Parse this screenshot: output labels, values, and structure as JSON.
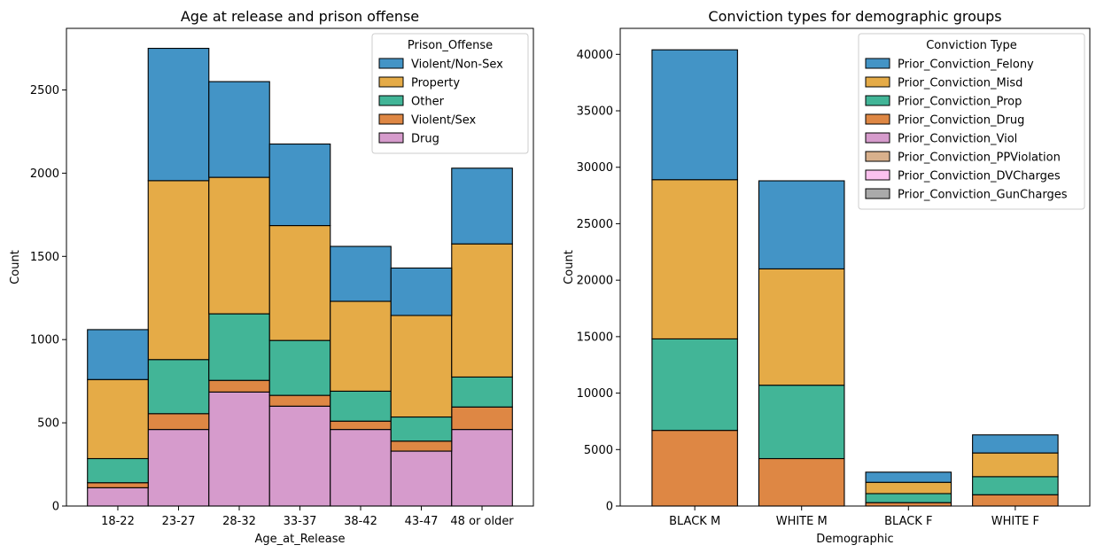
{
  "chart_data": [
    {
      "type": "bar",
      "stacked": true,
      "title": "Age at release and prison offense",
      "xlabel": "Age_at_Release",
      "ylabel": "Count",
      "categories": [
        "18-22",
        "23-27",
        "28-32",
        "33-37",
        "38-42",
        "43-47",
        "48 or older"
      ],
      "ylim": [
        0,
        2870
      ],
      "yticks": [
        0,
        500,
        1000,
        1500,
        2000,
        2500
      ],
      "grid": false,
      "legend": {
        "title": "Prison_Offense",
        "placement": "top-right"
      },
      "series": [
        {
          "name": "Drug",
          "color": "#d69bcc",
          "values": [
            110,
            460,
            685,
            600,
            460,
            330,
            460
          ]
        },
        {
          "name": "Violent/Sex",
          "color": "#de8744",
          "values": [
            30,
            95,
            70,
            65,
            50,
            60,
            135
          ]
        },
        {
          "name": "Other",
          "color": "#42b597",
          "values": [
            145,
            325,
            400,
            330,
            180,
            145,
            180
          ]
        },
        {
          "name": "Property",
          "color": "#e5ab47",
          "values": [
            475,
            1075,
            820,
            690,
            540,
            610,
            800
          ]
        },
        {
          "name": "Violent/Non-Sex",
          "color": "#4394c6",
          "values": [
            300,
            795,
            575,
            490,
            330,
            285,
            455
          ]
        }
      ],
      "legend_order": [
        "Violent/Non-Sex",
        "Property",
        "Other",
        "Violent/Sex",
        "Drug"
      ]
    },
    {
      "type": "bar",
      "stacked": true,
      "title": "Conviction types for demographic groups",
      "xlabel": "Demographic",
      "ylabel": "Count",
      "categories": [
        "BLACK M",
        "WHITE M",
        "BLACK F",
        "WHITE F"
      ],
      "ylim": [
        0,
        42300
      ],
      "yticks": [
        0,
        5000,
        10000,
        15000,
        20000,
        25000,
        30000,
        35000,
        40000
      ],
      "grid": false,
      "legend": {
        "title": "Conviction Type",
        "placement": "top-right"
      },
      "series": [
        {
          "name": "Prior_Conviction_Drug",
          "color": "#de8744",
          "values": [
            6700,
            4200,
            300,
            1000
          ]
        },
        {
          "name": "Prior_Conviction_Prop",
          "color": "#42b597",
          "values": [
            8100,
            6500,
            800,
            1600
          ]
        },
        {
          "name": "Prior_Conviction_Misd",
          "color": "#e5ab47",
          "values": [
            14100,
            10300,
            1000,
            2100
          ]
        },
        {
          "name": "Prior_Conviction_Felony",
          "color": "#4394c6",
          "values": [
            11500,
            7800,
            900,
            1600
          ]
        },
        {
          "name": "Prior_Conviction_Viol",
          "color": "#d69bcc",
          "values": [
            0,
            0,
            0,
            0
          ]
        },
        {
          "name": "Prior_Conviction_PPViolation",
          "color": "#d8b08c",
          "values": [
            0,
            0,
            0,
            0
          ]
        },
        {
          "name": "Prior_Conviction_DVCharges",
          "color": "#fbc1ee",
          "values": [
            0,
            0,
            0,
            0
          ]
        },
        {
          "name": "Prior_Conviction_GunCharges",
          "color": "#aaaaaa",
          "values": [
            0,
            0,
            0,
            0
          ]
        }
      ],
      "legend_order": [
        "Prior_Conviction_Felony",
        "Prior_Conviction_Misd",
        "Prior_Conviction_Prop",
        "Prior_Conviction_Drug",
        "Prior_Conviction_Viol",
        "Prior_Conviction_PPViolation",
        "Prior_Conviction_DVCharges",
        "Prior_Conviction_GunCharges"
      ]
    }
  ]
}
